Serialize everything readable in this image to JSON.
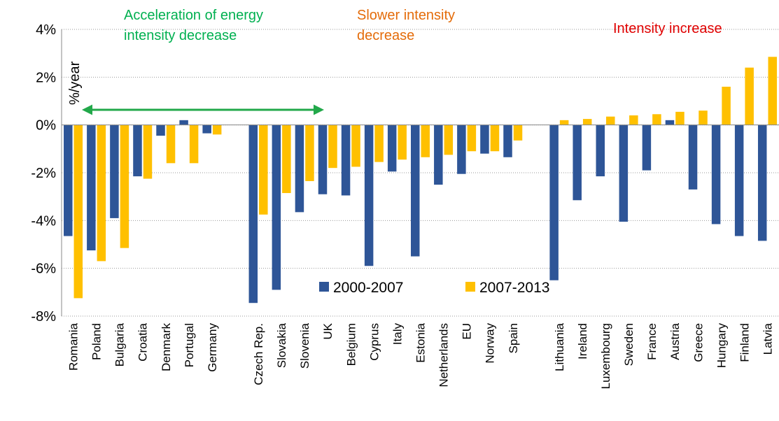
{
  "chart_data": {
    "type": "bar",
    "categories": [
      "Romania",
      "Poland",
      "Bulgaria",
      "Croatia",
      "Denmark",
      "Portugal",
      "Germany",
      null,
      "Czech Rep.",
      "Slovakia",
      "Slovenia",
      "UK",
      "Belgium",
      "Cyprus",
      "Italy",
      "Estonia",
      "Netherlands",
      "EU",
      "Norway",
      "Spain",
      null,
      "Lithuania",
      "Ireland",
      "Luxembourg",
      "Sweden",
      "France",
      "Austria",
      "Greece",
      "Hungary",
      "Finland",
      "Latvia"
    ],
    "series": [
      {
        "name": "2000-2007",
        "color": "#2e5597",
        "values": [
          -4.65,
          -5.25,
          -3.9,
          -2.15,
          -0.45,
          0.2,
          -0.35,
          null,
          -7.45,
          -6.9,
          -3.65,
          -2.9,
          -2.95,
          -5.9,
          -1.95,
          -5.5,
          -2.5,
          -2.05,
          -1.2,
          -1.35,
          null,
          -6.5,
          -3.15,
          -2.15,
          -4.05,
          -1.9,
          0.2,
          -2.7,
          -4.15,
          -4.65,
          -4.85
        ]
      },
      {
        "name": "2007-2013",
        "color": "#ffc000",
        "values": [
          -7.25,
          -5.7,
          -5.15,
          -2.25,
          -1.6,
          -1.6,
          -0.4,
          null,
          -3.75,
          -2.85,
          -2.35,
          -1.8,
          -1.75,
          -1.55,
          -1.45,
          -1.35,
          -1.25,
          -1.1,
          -1.1,
          -0.65,
          null,
          0.2,
          0.25,
          0.35,
          0.4,
          0.45,
          0.55,
          0.6,
          1.6,
          2.4,
          2.85
        ]
      }
    ],
    "ylim": [
      -8,
      4
    ],
    "yticks": [
      {
        "value": -8,
        "label": "-8%"
      },
      {
        "value": -6,
        "label": "-6%"
      },
      {
        "value": -4,
        "label": "-4%"
      },
      {
        "value": -2,
        "label": "-2%"
      },
      {
        "value": 0,
        "label": "0%"
      },
      {
        "value": 2,
        "label": "2%"
      },
      {
        "value": 4,
        "label": "4%"
      }
    ],
    "y_axis_label": "%/year",
    "grid": true,
    "annotations": [
      {
        "lines": [
          "Acceleration of energy",
          "intensity decrease"
        ],
        "color": "#00b050"
      },
      {
        "lines": [
          "Slower intensity",
          "decrease"
        ],
        "color": "#e46c0a"
      },
      {
        "lines": [
          "Intensity increase"
        ],
        "color": "#e00000"
      }
    ]
  }
}
